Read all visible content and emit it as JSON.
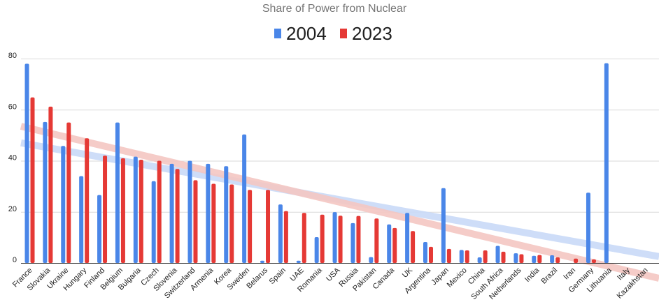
{
  "chart_data": {
    "type": "bar",
    "title": "Share of Power from Nuclear",
    "xlabel": "",
    "ylabel": "",
    "ylim": [
      0,
      85
    ],
    "yticks": [
      0,
      20,
      40,
      60,
      80
    ],
    "grid": true,
    "legend_position": "top",
    "categories": [
      "France",
      "Slovakia",
      "Ukraine",
      "Hungary",
      "Finland",
      "Belgium",
      "Bulgaria",
      "Czech",
      "Slovenia",
      "Switzerland",
      "Armenia",
      "Korea",
      "Sweden",
      "Belarus",
      "Spain",
      "UAE",
      "Romania",
      "USA",
      "Russia",
      "Pakistan",
      "Canada",
      "UK",
      "Argentina",
      "Japan",
      "Mexico",
      "China",
      "South Africa",
      "Netherlands",
      "India",
      "Brazil",
      "Iran",
      "Germany",
      "Lithuania",
      "Italy",
      "Kazakhstan"
    ],
    "series": [
      {
        "name": "2004",
        "color": "#4a86e8",
        "values": [
          78,
          55.2,
          45.8,
          34,
          26.6,
          55,
          41.6,
          32,
          38.8,
          40,
          38.8,
          37.9,
          50.3,
          0.9,
          22.9,
          0.9,
          10.1,
          19.9,
          15.6,
          2.3,
          15.1,
          19.6,
          8.2,
          29.3,
          5.1,
          2.2,
          6.7,
          3.8,
          2.8,
          3,
          0,
          27.5,
          78.2,
          0,
          0
        ]
      },
      {
        "name": "2023",
        "color": "#e53935",
        "values": [
          64.8,
          61.2,
          55,
          48.8,
          42,
          41,
          40.4,
          40,
          36.8,
          32.4,
          31,
          30.7,
          28.6,
          28.6,
          20.3,
          19.6,
          18.9,
          18.5,
          18.4,
          17.4,
          13.7,
          12.5,
          6.3,
          5.5,
          4.9,
          4.9,
          4.4,
          3.4,
          3.1,
          2.2,
          1.7,
          1.4,
          0,
          0,
          0
        ]
      }
    ],
    "trendlines": [
      {
        "series": "2004",
        "color": "#c9daf8",
        "from": [
          1,
          47
        ],
        "to": [
          35,
          2.5
        ]
      },
      {
        "series": "2023",
        "color": "#f4c7c3",
        "from": [
          1,
          53.5
        ],
        "to": [
          35,
          -6
        ]
      }
    ]
  }
}
